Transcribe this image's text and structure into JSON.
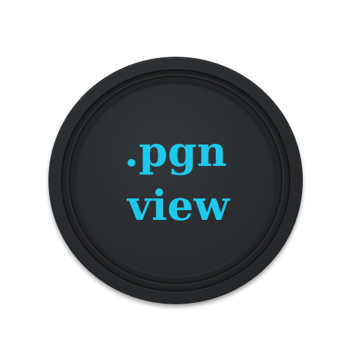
{
  "logo": {
    "line1": ".pgn",
    "line2": "view",
    "text_color": "#1ec9ec",
    "button_color": "#2a2c2e",
    "background_color": "#ffffff"
  }
}
